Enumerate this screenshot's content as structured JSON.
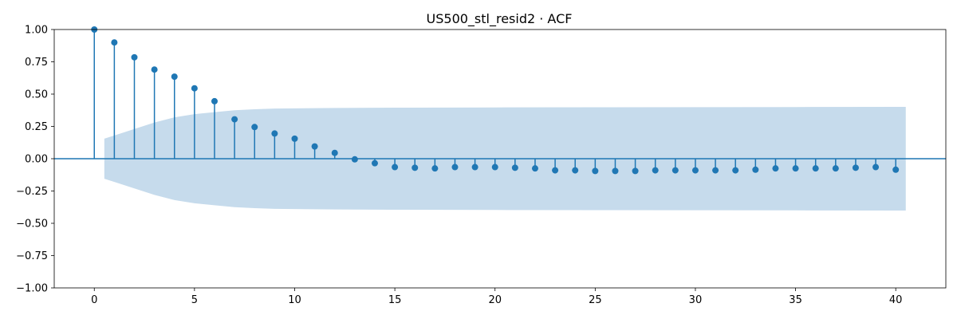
{
  "chart_data": {
    "type": "scatter",
    "style": "stem",
    "title": "US500_stl_resid2 · ACF",
    "xlabel": "",
    "ylabel": "",
    "xlim": [
      -2,
      42.5
    ],
    "ylim": [
      -1.0,
      1.0
    ],
    "xticks": [
      0,
      5,
      10,
      15,
      20,
      25,
      30,
      35,
      40
    ],
    "yticks": [
      -1.0,
      -0.75,
      -0.5,
      -0.25,
      0.0,
      0.25,
      0.5,
      0.75,
      1.0
    ],
    "xtick_labels": [
      "0",
      "5",
      "10",
      "15",
      "20",
      "25",
      "30",
      "35",
      "40"
    ],
    "ytick_labels": [
      "−1.00",
      "−0.75",
      "−0.50",
      "−0.25",
      "0.00",
      "0.25",
      "0.50",
      "0.75",
      "1.00"
    ],
    "grid": false,
    "colors": {
      "stem": "#1f77b4",
      "confidence_band": "#c6dbec"
    },
    "lags": [
      0,
      1,
      2,
      3,
      4,
      5,
      6,
      7,
      8,
      9,
      10,
      11,
      12,
      13,
      14,
      15,
      16,
      17,
      18,
      19,
      20,
      21,
      22,
      23,
      24,
      25,
      26,
      27,
      28,
      29,
      30,
      31,
      32,
      33,
      34,
      35,
      36,
      37,
      38,
      39,
      40
    ],
    "acf": [
      1.0,
      0.9,
      0.785,
      0.69,
      0.635,
      0.545,
      0.445,
      0.305,
      0.245,
      0.195,
      0.155,
      0.095,
      0.045,
      -0.005,
      -0.035,
      -0.065,
      -0.07,
      -0.075,
      -0.065,
      -0.065,
      -0.065,
      -0.07,
      -0.075,
      -0.09,
      -0.09,
      -0.095,
      -0.095,
      -0.095,
      -0.09,
      -0.09,
      -0.09,
      -0.09,
      -0.09,
      -0.085,
      -0.075,
      -0.075,
      -0.075,
      -0.075,
      -0.07,
      -0.065,
      -0.085
    ],
    "confidence_band": {
      "x": [
        0.5,
        1,
        2,
        3,
        4,
        5,
        6,
        7,
        8,
        9,
        10,
        12,
        15,
        20,
        25,
        30,
        35,
        40,
        40.5
      ],
      "upper": [
        0.155,
        0.18,
        0.23,
        0.28,
        0.32,
        0.345,
        0.36,
        0.375,
        0.383,
        0.388,
        0.39,
        0.393,
        0.395,
        0.397,
        0.398,
        0.399,
        0.4,
        0.401,
        0.401
      ]
    }
  }
}
